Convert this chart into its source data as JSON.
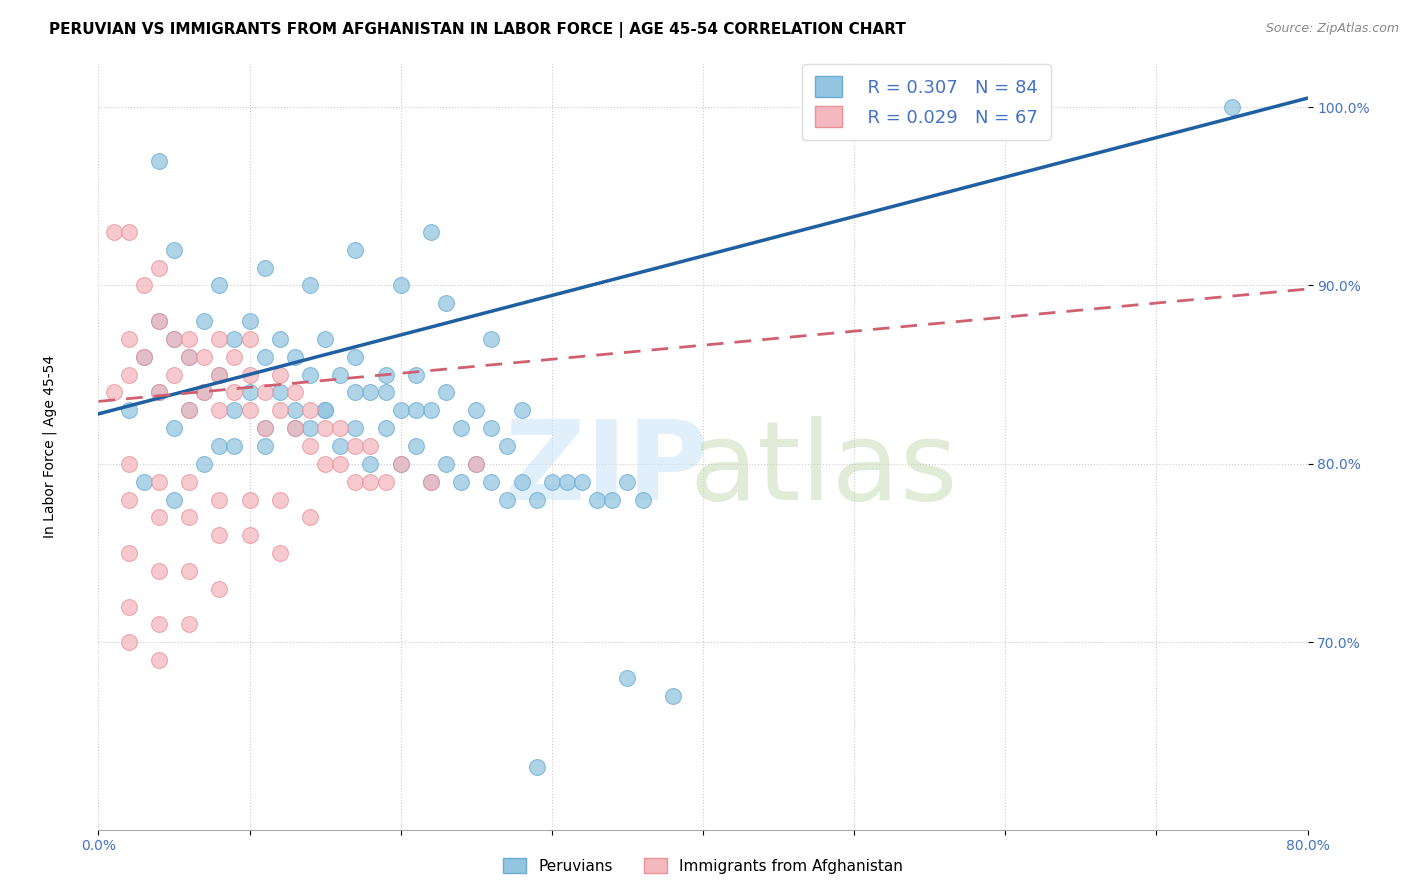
{
  "title": "PERUVIAN VS IMMIGRANTS FROM AFGHANISTAN IN LABOR FORCE | AGE 45-54 CORRELATION CHART",
  "source": "Source: ZipAtlas.com",
  "ylabel": "In Labor Force | Age 45-54",
  "xlim": [
    0.0,
    0.8
  ],
  "ylim": [
    0.595,
    1.025
  ],
  "blue_color": "#94c5e0",
  "blue_edge_color": "#6aadd5",
  "pink_color": "#f4b8be",
  "pink_edge_color": "#e8929a",
  "blue_line_color": "#2060a0",
  "pink_line_color": "#d06070",
  "R_blue": 0.307,
  "N_blue": 84,
  "R_pink": 0.029,
  "N_pink": 67,
  "title_fontsize": 11,
  "axis_label_fontsize": 10,
  "tick_fontsize": 10,
  "legend_fontsize": 13,
  "blue_scatter_x": [
    0.02,
    0.03,
    0.04,
    0.04,
    0.05,
    0.05,
    0.06,
    0.06,
    0.07,
    0.07,
    0.08,
    0.08,
    0.09,
    0.09,
    0.1,
    0.1,
    0.11,
    0.11,
    0.12,
    0.12,
    0.13,
    0.13,
    0.14,
    0.14,
    0.15,
    0.15,
    0.16,
    0.16,
    0.17,
    0.17,
    0.18,
    0.18,
    0.19,
    0.19,
    0.2,
    0.2,
    0.21,
    0.21,
    0.22,
    0.22,
    0.23,
    0.23,
    0.24,
    0.24,
    0.25,
    0.25,
    0.26,
    0.26,
    0.27,
    0.27,
    0.28,
    0.28,
    0.29,
    0.3,
    0.31,
    0.32,
    0.33,
    0.34,
    0.35,
    0.36,
    0.03,
    0.05,
    0.07,
    0.09,
    0.11,
    0.13,
    0.15,
    0.17,
    0.19,
    0.21,
    0.05,
    0.08,
    0.11,
    0.14,
    0.17,
    0.2,
    0.23,
    0.26,
    0.35,
    0.75,
    0.04,
    0.22,
    0.29,
    0.38
  ],
  "blue_scatter_y": [
    0.83,
    0.86,
    0.84,
    0.88,
    0.82,
    0.87,
    0.83,
    0.86,
    0.84,
    0.88,
    0.81,
    0.85,
    0.83,
    0.87,
    0.84,
    0.88,
    0.82,
    0.86,
    0.84,
    0.87,
    0.83,
    0.86,
    0.82,
    0.85,
    0.83,
    0.87,
    0.81,
    0.85,
    0.82,
    0.86,
    0.8,
    0.84,
    0.82,
    0.85,
    0.8,
    0.83,
    0.81,
    0.85,
    0.79,
    0.83,
    0.8,
    0.84,
    0.79,
    0.82,
    0.8,
    0.83,
    0.79,
    0.82,
    0.78,
    0.81,
    0.79,
    0.83,
    0.78,
    0.79,
    0.79,
    0.79,
    0.78,
    0.78,
    0.79,
    0.78,
    0.79,
    0.78,
    0.8,
    0.81,
    0.81,
    0.82,
    0.83,
    0.84,
    0.84,
    0.83,
    0.92,
    0.9,
    0.91,
    0.9,
    0.92,
    0.9,
    0.89,
    0.87,
    0.68,
    1.0,
    0.97,
    0.93,
    0.63,
    0.67
  ],
  "pink_scatter_x": [
    0.01,
    0.02,
    0.02,
    0.03,
    0.03,
    0.04,
    0.04,
    0.04,
    0.05,
    0.05,
    0.06,
    0.06,
    0.06,
    0.07,
    0.07,
    0.08,
    0.08,
    0.08,
    0.09,
    0.09,
    0.1,
    0.1,
    0.1,
    0.11,
    0.11,
    0.12,
    0.12,
    0.13,
    0.13,
    0.14,
    0.14,
    0.15,
    0.15,
    0.16,
    0.16,
    0.17,
    0.17,
    0.18,
    0.18,
    0.19,
    0.02,
    0.04,
    0.06,
    0.08,
    0.1,
    0.12,
    0.14,
    0.02,
    0.04,
    0.06,
    0.08,
    0.1,
    0.12,
    0.02,
    0.04,
    0.06,
    0.08,
    0.02,
    0.04,
    0.06,
    0.02,
    0.04,
    0.01,
    0.02,
    0.2,
    0.22,
    0.25
  ],
  "pink_scatter_y": [
    0.84,
    0.85,
    0.87,
    0.86,
    0.9,
    0.88,
    0.84,
    0.91,
    0.87,
    0.85,
    0.86,
    0.83,
    0.87,
    0.84,
    0.86,
    0.83,
    0.85,
    0.87,
    0.84,
    0.86,
    0.83,
    0.85,
    0.87,
    0.84,
    0.82,
    0.83,
    0.85,
    0.82,
    0.84,
    0.81,
    0.83,
    0.8,
    0.82,
    0.8,
    0.82,
    0.79,
    0.81,
    0.79,
    0.81,
    0.79,
    0.8,
    0.79,
    0.79,
    0.78,
    0.78,
    0.78,
    0.77,
    0.78,
    0.77,
    0.77,
    0.76,
    0.76,
    0.75,
    0.75,
    0.74,
    0.74,
    0.73,
    0.72,
    0.71,
    0.71,
    0.7,
    0.69,
    0.93,
    0.93,
    0.8,
    0.79,
    0.8
  ]
}
